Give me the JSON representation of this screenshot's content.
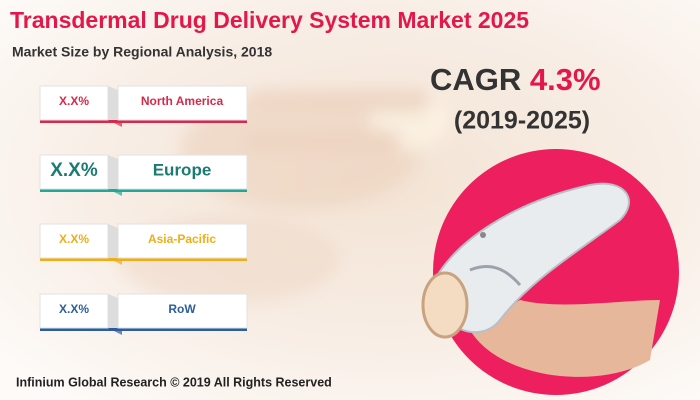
{
  "header": {
    "title": "Transdermal Drug Delivery System Market 2025",
    "subtitle": "Market Size by Regional Analysis, 2018"
  },
  "regions": [
    {
      "value": "X.X%",
      "name": "North America",
      "color": "#d8284b"
    },
    {
      "value": "X.X%",
      "name": "Europe",
      "color": "#20a896"
    },
    {
      "value": "X.X%",
      "name": "Asia-Pacific",
      "color": "#f0ad16"
    },
    {
      "value": "X.X%",
      "name": "RoW",
      "color": "#2c5d9c"
    }
  ],
  "cagr": {
    "label": "CAGR",
    "value": "4.3%",
    "period": "(2019-2025)"
  },
  "footer": "Infinium Global Research © 2019 All Rights Reserved"
}
